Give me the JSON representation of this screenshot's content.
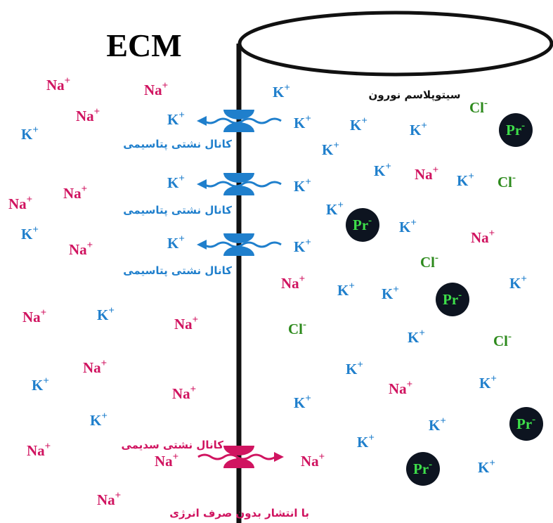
{
  "title": "ECM",
  "cytoplasm_label": "سیتوپلاسم نورون",
  "potassium_channels": [
    {
      "label": "کانال نشتی پتاسیمی",
      "outside_ion": {
        "symbol": "K",
        "charge": "+"
      },
      "inside_ion": {
        "symbol": "K",
        "charge": "+"
      }
    },
    {
      "label": "کانال نشتی پتاسیمی",
      "outside_ion": {
        "symbol": "K",
        "charge": "+"
      },
      "inside_ion": {
        "symbol": "K",
        "charge": "+"
      }
    },
    {
      "label": "کانال نشتی پتاسیمی",
      "outside_ion": {
        "symbol": "K",
        "charge": "+"
      },
      "inside_ion": {
        "symbol": "K",
        "charge": "+"
      }
    }
  ],
  "sodium_channel": {
    "label": "کانال نشتی سدیمی",
    "outside_ion": {
      "symbol": "Na",
      "charge": "+"
    },
    "inside_ion": {
      "symbol": "Na",
      "charge": "+"
    },
    "caption": "با انتشار بدون صرف انرژی"
  },
  "extracellular_ions": [
    {
      "symbol": "Na",
      "charge": "+"
    },
    {
      "symbol": "Na",
      "charge": "+"
    },
    {
      "symbol": "Na",
      "charge": "+"
    },
    {
      "symbol": "K",
      "charge": "+"
    },
    {
      "symbol": "Na",
      "charge": "+"
    },
    {
      "symbol": "Na",
      "charge": "+"
    },
    {
      "symbol": "K",
      "charge": "+"
    },
    {
      "symbol": "Na",
      "charge": "+"
    },
    {
      "symbol": "Na",
      "charge": "+"
    },
    {
      "symbol": "K",
      "charge": "+"
    },
    {
      "symbol": "Na",
      "charge": "+"
    },
    {
      "symbol": "Na",
      "charge": "+"
    },
    {
      "symbol": "K",
      "charge": "+"
    },
    {
      "symbol": "Na",
      "charge": "+"
    },
    {
      "symbol": "K",
      "charge": "+"
    },
    {
      "symbol": "Na",
      "charge": "+"
    },
    {
      "symbol": "Na",
      "charge": "+"
    }
  ],
  "intracellular_ions": [
    {
      "symbol": "K",
      "charge": "+"
    },
    {
      "symbol": "Cl",
      "charge": "-"
    },
    {
      "symbol": "Pr",
      "charge": "-"
    },
    {
      "symbol": "K",
      "charge": "+"
    },
    {
      "symbol": "K",
      "charge": "+"
    },
    {
      "symbol": "K",
      "charge": "+"
    },
    {
      "symbol": "K",
      "charge": "+"
    },
    {
      "symbol": "Na",
      "charge": "+"
    },
    {
      "symbol": "K",
      "charge": "+"
    },
    {
      "symbol": "Cl",
      "charge": "-"
    },
    {
      "symbol": "K",
      "charge": "+"
    },
    {
      "symbol": "Pr",
      "charge": "-"
    },
    {
      "symbol": "K",
      "charge": "+"
    },
    {
      "symbol": "Na",
      "charge": "+"
    },
    {
      "symbol": "Cl",
      "charge": "-"
    },
    {
      "symbol": "Na",
      "charge": "+"
    },
    {
      "symbol": "K",
      "charge": "+"
    },
    {
      "symbol": "K",
      "charge": "+"
    },
    {
      "symbol": "Pr",
      "charge": "-"
    },
    {
      "symbol": "K",
      "charge": "+"
    },
    {
      "symbol": "Cl",
      "charge": "-"
    },
    {
      "symbol": "K",
      "charge": "+"
    },
    {
      "symbol": "Cl",
      "charge": "-"
    },
    {
      "symbol": "K",
      "charge": "+"
    },
    {
      "symbol": "Na",
      "charge": "+"
    },
    {
      "symbol": "K",
      "charge": "+"
    },
    {
      "symbol": "K",
      "charge": "+"
    },
    {
      "symbol": "K",
      "charge": "+"
    },
    {
      "symbol": "Pr",
      "charge": "-"
    },
    {
      "symbol": "K",
      "charge": "+"
    },
    {
      "symbol": "Pr",
      "charge": "-"
    },
    {
      "symbol": "K",
      "charge": "+"
    }
  ]
}
